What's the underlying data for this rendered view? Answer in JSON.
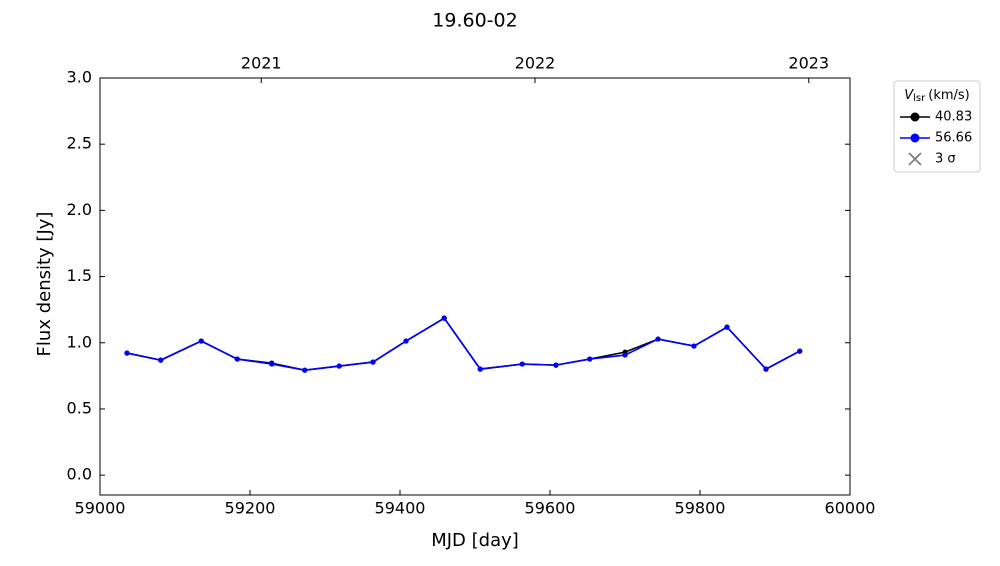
{
  "chart_data": {
    "type": "line",
    "title": "19.60-02",
    "xlabel": "MJD [day]",
    "ylabel": "Flux density [Jy]",
    "x": [
      59036,
      59081,
      59135,
      59183,
      59229,
      59273,
      59319,
      59364,
      59408,
      59459,
      59507,
      59563,
      59608,
      59653,
      59700,
      59744,
      59792,
      59836,
      59888,
      59933
    ],
    "series": [
      {
        "name": "40.83",
        "color": "#000000",
        "values": [
          0.922,
          0.869,
          1.013,
          0.877,
          0.846,
          0.793,
          0.824,
          0.854,
          1.013,
          1.186,
          0.801,
          0.839,
          0.831,
          0.877,
          0.929,
          1.028,
          0.975,
          1.118,
          0.801,
          0.937
        ]
      },
      {
        "name": "56.66",
        "color": "#0000ff",
        "values": [
          0.922,
          0.869,
          1.013,
          0.877,
          0.839,
          0.793,
          0.824,
          0.854,
          1.013,
          1.186,
          0.801,
          0.839,
          0.831,
          0.877,
          0.907,
          1.028,
          0.975,
          1.118,
          0.801,
          0.937
        ]
      }
    ],
    "xlim": [
      59000,
      60000
    ],
    "xticks": [
      59000,
      59200,
      59400,
      59600,
      59800,
      60000
    ],
    "ylim": [
      -0.15,
      3.0
    ],
    "yticks": [
      {
        "value": 0,
        "label": "0.0"
      },
      0.5,
      {
        "value": 1,
        "label": "1.0"
      },
      1.5,
      {
        "value": 2,
        "label": "2.0"
      },
      2.5,
      {
        "value": 3,
        "label": "3.0"
      }
    ],
    "top_xticks": [
      {
        "value": 59215,
        "label": "2021"
      },
      {
        "value": 59580,
        "label": "2022"
      },
      {
        "value": 59945,
        "label": "2023"
      }
    ],
    "legend_title": {
      "symbol": "V",
      "subscript": "lsr",
      "unit": "(km/s)"
    },
    "sigma_label": "3 σ",
    "sigma_color": "#808080",
    "legend_position": "outside-upper-right",
    "grid": false
  }
}
